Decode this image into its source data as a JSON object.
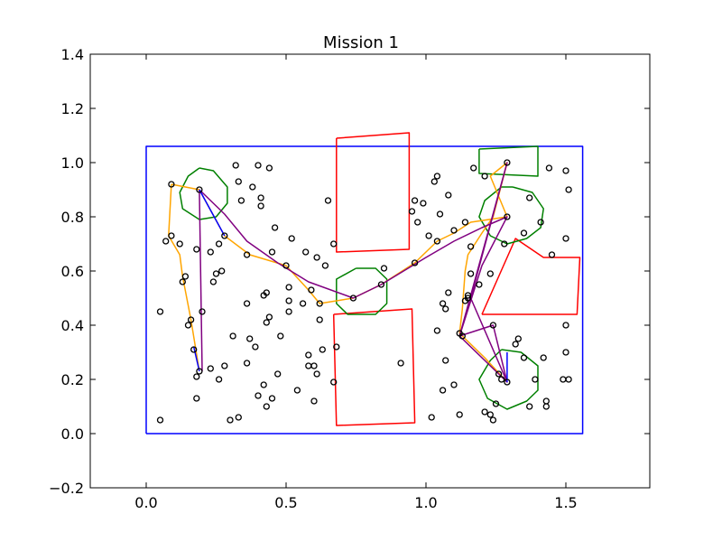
{
  "chart_data": {
    "type": "scatter",
    "title": "Mission 1",
    "xlabel": "",
    "ylabel": "",
    "xlim": [
      -0.2,
      1.8
    ],
    "ylim": [
      -0.2,
      1.4
    ],
    "x_ticks": [
      "0.0",
      "0.5",
      "1.0",
      "1.5"
    ],
    "x_tick_values": [
      0.0,
      0.5,
      1.0,
      1.5
    ],
    "y_ticks": [
      "−0.2",
      "0.0",
      "0.2",
      "0.4",
      "0.6",
      "0.8",
      "1.0",
      "1.2",
      "1.4"
    ],
    "y_tick_values": [
      -0.2,
      0.0,
      0.2,
      0.4,
      0.6,
      0.8,
      1.0,
      1.2,
      1.4
    ],
    "grid": false,
    "colors": {
      "boundary": "#0000ff",
      "obstacle": "#ff0000",
      "region": "#008000",
      "path_orange": "#ffa500",
      "path_purple": "#800080",
      "path_blue": "#0000ff",
      "points": "#000000"
    },
    "boundary": [
      [
        0.0,
        0.0
      ],
      [
        1.56,
        0.0
      ],
      [
        1.56,
        1.06
      ],
      [
        0.0,
        1.06
      ],
      [
        0.0,
        0.0
      ]
    ],
    "obstacles": [
      [
        [
          0.68,
          1.09
        ],
        [
          0.94,
          1.11
        ],
        [
          0.94,
          0.68
        ],
        [
          0.68,
          0.67
        ],
        [
          0.68,
          1.09
        ]
      ],
      [
        [
          0.67,
          0.44
        ],
        [
          0.95,
          0.46
        ],
        [
          0.96,
          0.04
        ],
        [
          0.68,
          0.03
        ],
        [
          0.67,
          0.44
        ]
      ],
      [
        [
          1.2,
          0.44
        ],
        [
          1.32,
          0.72
        ],
        [
          1.42,
          0.65
        ],
        [
          1.55,
          0.65
        ],
        [
          1.54,
          0.44
        ],
        [
          1.2,
          0.44
        ]
      ]
    ],
    "regions": [
      [
        [
          0.19,
          0.98
        ],
        [
          0.24,
          0.97
        ],
        [
          0.29,
          0.91
        ],
        [
          0.29,
          0.85
        ],
        [
          0.25,
          0.8
        ],
        [
          0.19,
          0.79
        ],
        [
          0.13,
          0.83
        ],
        [
          0.12,
          0.89
        ],
        [
          0.15,
          0.95
        ],
        [
          0.19,
          0.98
        ]
      ],
      [
        [
          0.75,
          0.61
        ],
        [
          0.82,
          0.61
        ],
        [
          0.86,
          0.57
        ],
        [
          0.86,
          0.48
        ],
        [
          0.82,
          0.44
        ],
        [
          0.72,
          0.44
        ],
        [
          0.68,
          0.48
        ],
        [
          0.68,
          0.57
        ],
        [
          0.75,
          0.61
        ]
      ],
      [
        [
          1.19,
          1.05
        ],
        [
          1.4,
          1.06
        ],
        [
          1.4,
          0.95
        ],
        [
          1.19,
          0.96
        ],
        [
          1.19,
          1.05
        ]
      ],
      [
        [
          1.31,
          0.91
        ],
        [
          1.38,
          0.89
        ],
        [
          1.42,
          0.83
        ],
        [
          1.41,
          0.76
        ],
        [
          1.36,
          0.72
        ],
        [
          1.29,
          0.7
        ],
        [
          1.23,
          0.73
        ],
        [
          1.19,
          0.8
        ],
        [
          1.21,
          0.86
        ],
        [
          1.27,
          0.91
        ],
        [
          1.31,
          0.91
        ]
      ],
      [
        [
          1.27,
          0.31
        ],
        [
          1.34,
          0.3
        ],
        [
          1.4,
          0.25
        ],
        [
          1.4,
          0.16
        ],
        [
          1.36,
          0.12
        ],
        [
          1.29,
          0.09
        ],
        [
          1.22,
          0.13
        ],
        [
          1.19,
          0.2
        ],
        [
          1.23,
          0.27
        ],
        [
          1.27,
          0.31
        ]
      ]
    ],
    "path_orange": [
      [
        0.09,
        0.92
      ],
      [
        0.19,
        0.9
      ],
      [
        0.28,
        0.73
      ],
      [
        0.37,
        0.66
      ],
      [
        0.5,
        0.62
      ],
      [
        0.58,
        0.53
      ],
      [
        0.62,
        0.48
      ],
      [
        0.74,
        0.5
      ],
      [
        0.84,
        0.55
      ],
      [
        0.96,
        0.63
      ],
      [
        1.04,
        0.71
      ],
      [
        1.1,
        0.74
      ],
      [
        1.16,
        0.78
      ],
      [
        1.29,
        0.8
      ],
      [
        1.23,
        0.95
      ],
      [
        1.29,
        1.0
      ],
      [
        1.24,
        0.8
      ],
      [
        1.2,
        0.74
      ],
      [
        1.15,
        0.66
      ],
      [
        1.14,
        0.6
      ],
      [
        1.13,
        0.46
      ],
      [
        1.12,
        0.37
      ],
      [
        1.21,
        0.28
      ],
      [
        1.29,
        0.19
      ]
    ],
    "path_orange_2": [
      [
        0.09,
        0.92
      ],
      [
        0.08,
        0.73
      ],
      [
        0.12,
        0.66
      ],
      [
        0.13,
        0.58
      ],
      [
        0.16,
        0.42
      ],
      [
        0.19,
        0.23
      ]
    ],
    "path_purple": [
      [
        0.19,
        0.9
      ],
      [
        0.28,
        0.81
      ],
      [
        0.36,
        0.71
      ],
      [
        0.47,
        0.63
      ],
      [
        0.58,
        0.56
      ],
      [
        0.74,
        0.5
      ],
      [
        0.84,
        0.55
      ],
      [
        1.0,
        0.65
      ],
      [
        1.1,
        0.71
      ],
      [
        1.2,
        0.76
      ],
      [
        1.29,
        0.8
      ],
      [
        1.2,
        0.62
      ],
      [
        1.12,
        0.36
      ],
      [
        1.29,
        0.19
      ],
      [
        1.16,
        0.5
      ],
      [
        1.29,
        1.0
      ],
      [
        1.12,
        0.36
      ],
      [
        1.24,
        0.4
      ],
      [
        1.29,
        0.19
      ]
    ],
    "path_purple_2": [
      [
        0.19,
        0.9
      ],
      [
        0.2,
        0.23
      ]
    ],
    "path_blue": [
      [
        0.19,
        0.9
      ],
      [
        0.28,
        0.73
      ]
    ],
    "path_blue_2": [
      [
        0.19,
        0.23
      ],
      [
        0.17,
        0.32
      ]
    ],
    "path_blue_3": [
      [
        1.29,
        0.19
      ],
      [
        1.29,
        0.3
      ]
    ],
    "points": [
      [
        0.05,
        0.05
      ],
      [
        0.05,
        0.45
      ],
      [
        0.07,
        0.71
      ],
      [
        0.09,
        0.73
      ],
      [
        0.09,
        0.92
      ],
      [
        0.12,
        0.7
      ],
      [
        0.13,
        0.56
      ],
      [
        0.14,
        0.58
      ],
      [
        0.15,
        0.4
      ],
      [
        0.16,
        0.42
      ],
      [
        0.17,
        0.31
      ],
      [
        0.18,
        0.21
      ],
      [
        0.18,
        0.13
      ],
      [
        0.18,
        0.68
      ],
      [
        0.19,
        0.9
      ],
      [
        0.19,
        0.23
      ],
      [
        0.2,
        0.45
      ],
      [
        0.23,
        0.67
      ],
      [
        0.23,
        0.24
      ],
      [
        0.24,
        0.56
      ],
      [
        0.25,
        0.59
      ],
      [
        0.26,
        0.2
      ],
      [
        0.26,
        0.7
      ],
      [
        0.27,
        0.6
      ],
      [
        0.28,
        0.73
      ],
      [
        0.28,
        0.25
      ],
      [
        0.3,
        0.05
      ],
      [
        0.31,
        0.36
      ],
      [
        0.32,
        0.99
      ],
      [
        0.33,
        0.06
      ],
      [
        0.33,
        0.93
      ],
      [
        0.34,
        0.86
      ],
      [
        0.36,
        0.48
      ],
      [
        0.36,
        0.66
      ],
      [
        0.36,
        0.26
      ],
      [
        0.37,
        0.35
      ],
      [
        0.38,
        0.91
      ],
      [
        0.39,
        0.32
      ],
      [
        0.4,
        0.14
      ],
      [
        0.4,
        0.99
      ],
      [
        0.41,
        0.84
      ],
      [
        0.41,
        0.87
      ],
      [
        0.42,
        0.51
      ],
      [
        0.42,
        0.18
      ],
      [
        0.43,
        0.52
      ],
      [
        0.43,
        0.41
      ],
      [
        0.43,
        0.1
      ],
      [
        0.44,
        0.98
      ],
      [
        0.44,
        0.43
      ],
      [
        0.45,
        0.67
      ],
      [
        0.45,
        0.13
      ],
      [
        0.46,
        0.76
      ],
      [
        0.47,
        0.22
      ],
      [
        0.48,
        0.36
      ],
      [
        0.5,
        0.62
      ],
      [
        0.51,
        0.54
      ],
      [
        0.51,
        0.49
      ],
      [
        0.51,
        0.45
      ],
      [
        0.52,
        0.72
      ],
      [
        0.54,
        0.16
      ],
      [
        0.56,
        0.48
      ],
      [
        0.57,
        0.67
      ],
      [
        0.58,
        0.29
      ],
      [
        0.58,
        0.25
      ],
      [
        0.59,
        0.53
      ],
      [
        0.6,
        0.12
      ],
      [
        0.6,
        0.25
      ],
      [
        0.61,
        0.22
      ],
      [
        0.61,
        0.65
      ],
      [
        0.62,
        0.48
      ],
      [
        0.62,
        0.42
      ],
      [
        0.63,
        0.31
      ],
      [
        0.64,
        0.62
      ],
      [
        0.65,
        0.86
      ],
      [
        0.67,
        0.7
      ],
      [
        0.68,
        0.32
      ],
      [
        0.67,
        0.19
      ],
      [
        0.74,
        0.5
      ],
      [
        0.84,
        0.55
      ],
      [
        0.85,
        0.61
      ],
      [
        0.91,
        0.26
      ],
      [
        0.95,
        0.82
      ],
      [
        0.96,
        0.63
      ],
      [
        0.96,
        0.86
      ],
      [
        0.97,
        0.78
      ],
      [
        0.99,
        0.85
      ],
      [
        1.01,
        0.73
      ],
      [
        1.02,
        0.06
      ],
      [
        1.03,
        0.93
      ],
      [
        1.04,
        0.71
      ],
      [
        1.04,
        0.95
      ],
      [
        1.04,
        0.38
      ],
      [
        1.05,
        0.81
      ],
      [
        1.06,
        0.48
      ],
      [
        1.06,
        0.16
      ],
      [
        1.07,
        0.27
      ],
      [
        1.07,
        0.46
      ],
      [
        1.08,
        0.88
      ],
      [
        1.08,
        0.52
      ],
      [
        1.1,
        0.75
      ],
      [
        1.1,
        0.18
      ],
      [
        1.12,
        0.37
      ],
      [
        1.12,
        0.07
      ],
      [
        1.13,
        0.36
      ],
      [
        1.14,
        0.78
      ],
      [
        1.14,
        0.49
      ],
      [
        1.15,
        0.5
      ],
      [
        1.15,
        0.51
      ],
      [
        1.16,
        0.59
      ],
      [
        1.16,
        0.69
      ],
      [
        1.17,
        0.98
      ],
      [
        1.19,
        0.55
      ],
      [
        1.21,
        0.95
      ],
      [
        1.21,
        0.08
      ],
      [
        1.23,
        0.07
      ],
      [
        1.23,
        0.59
      ],
      [
        1.24,
        0.4
      ],
      [
        1.24,
        0.05
      ],
      [
        1.25,
        0.11
      ],
      [
        1.26,
        0.22
      ],
      [
        1.27,
        0.2
      ],
      [
        1.28,
        0.7
      ],
      [
        1.29,
        0.19
      ],
      [
        1.29,
        0.8
      ],
      [
        1.29,
        1.0
      ],
      [
        1.32,
        0.33
      ],
      [
        1.33,
        0.35
      ],
      [
        1.35,
        0.28
      ],
      [
        1.35,
        0.74
      ],
      [
        1.37,
        0.1
      ],
      [
        1.37,
        0.87
      ],
      [
        1.39,
        0.2
      ],
      [
        1.41,
        0.78
      ],
      [
        1.42,
        0.28
      ],
      [
        1.43,
        0.1
      ],
      [
        1.43,
        0.12
      ],
      [
        1.44,
        0.98
      ],
      [
        1.45,
        0.66
      ],
      [
        1.49,
        0.2
      ],
      [
        1.5,
        0.3
      ],
      [
        1.5,
        0.4
      ],
      [
        1.5,
        0.72
      ],
      [
        1.5,
        0.97
      ],
      [
        1.51,
        0.2
      ],
      [
        1.51,
        0.9
      ]
    ]
  }
}
